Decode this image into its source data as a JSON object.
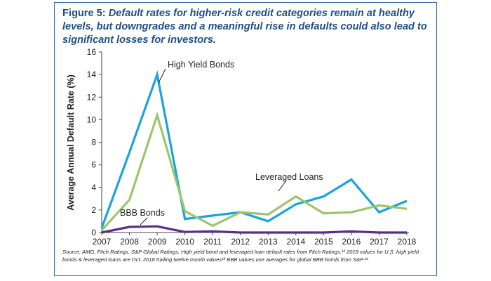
{
  "figure": {
    "number": "Figure 5: ",
    "title": "Default rates for higher-risk credit categories remain at healthy levels, but downgrades and a meaningful rise in defaults could also lead to significant losses for investors.",
    "source": "Source: AMG, Fitch Ratings, S&P Global Ratings. High yield bond and leveraged loan default rates from Fitch Ratings.¹² 2018 values for U.S. high yield bonds & leveraged loans are Oct. 2018 trailing twelve month values¹³  BBB values use averages for global BBB bonds from S&P.¹⁴"
  },
  "colors": {
    "frame": "#2a6fa8",
    "title": "#1e4f87",
    "high_yield": "#1aa3dd",
    "leveraged": "#9cc56e",
    "bbb": "#5b2d86",
    "axis": "#444444"
  },
  "chart_data": {
    "type": "line",
    "title": "",
    "xlabel": "",
    "ylabel": "Average Annual Default Rate (%)",
    "ylim": [
      0,
      16
    ],
    "yticks": [
      0,
      2,
      4,
      6,
      8,
      10,
      12,
      14,
      16
    ],
    "grid": false,
    "legend": "none",
    "x": [
      "2007",
      "2008",
      "2009",
      "2010",
      "2011",
      "2012",
      "2013",
      "2014",
      "2015",
      "2016",
      "2017",
      "2018"
    ],
    "series": [
      {
        "name": "High Yield Bonds",
        "color": "#1aa3dd",
        "values": [
          0.4,
          7.1,
          14.0,
          1.2,
          1.5,
          1.8,
          1.0,
          2.5,
          3.2,
          4.7,
          1.8,
          2.8
        ]
      },
      {
        "name": "Leveraged Loans",
        "color": "#9cc56e",
        "values": [
          0.2,
          2.9,
          10.4,
          1.9,
          0.6,
          1.8,
          1.6,
          3.2,
          1.7,
          1.8,
          2.4,
          2.1
        ]
      },
      {
        "name": "BBB Bonds",
        "color": "#5b2d86",
        "values": [
          0.0,
          0.5,
          0.55,
          0.05,
          0.1,
          0.0,
          0.0,
          0.0,
          0.0,
          0.1,
          0.0,
          0.0
        ]
      }
    ]
  }
}
